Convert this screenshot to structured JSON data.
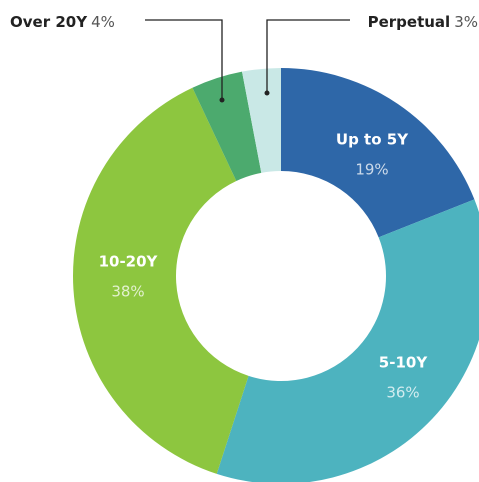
{
  "chart_data": {
    "type": "donut",
    "categories": [
      "Up to 5Y",
      "5-10Y",
      "10-20Y",
      "Over 20Y",
      "Perpetual"
    ],
    "values": [
      19,
      36,
      38,
      4,
      3
    ],
    "value_labels": [
      "19%",
      "36%",
      "38%",
      "4%",
      "3%"
    ],
    "colors": [
      "#2e67a8",
      "#4db3bf",
      "#8dc63f",
      "#4caa6e",
      "#c9e8e6"
    ]
  }
}
